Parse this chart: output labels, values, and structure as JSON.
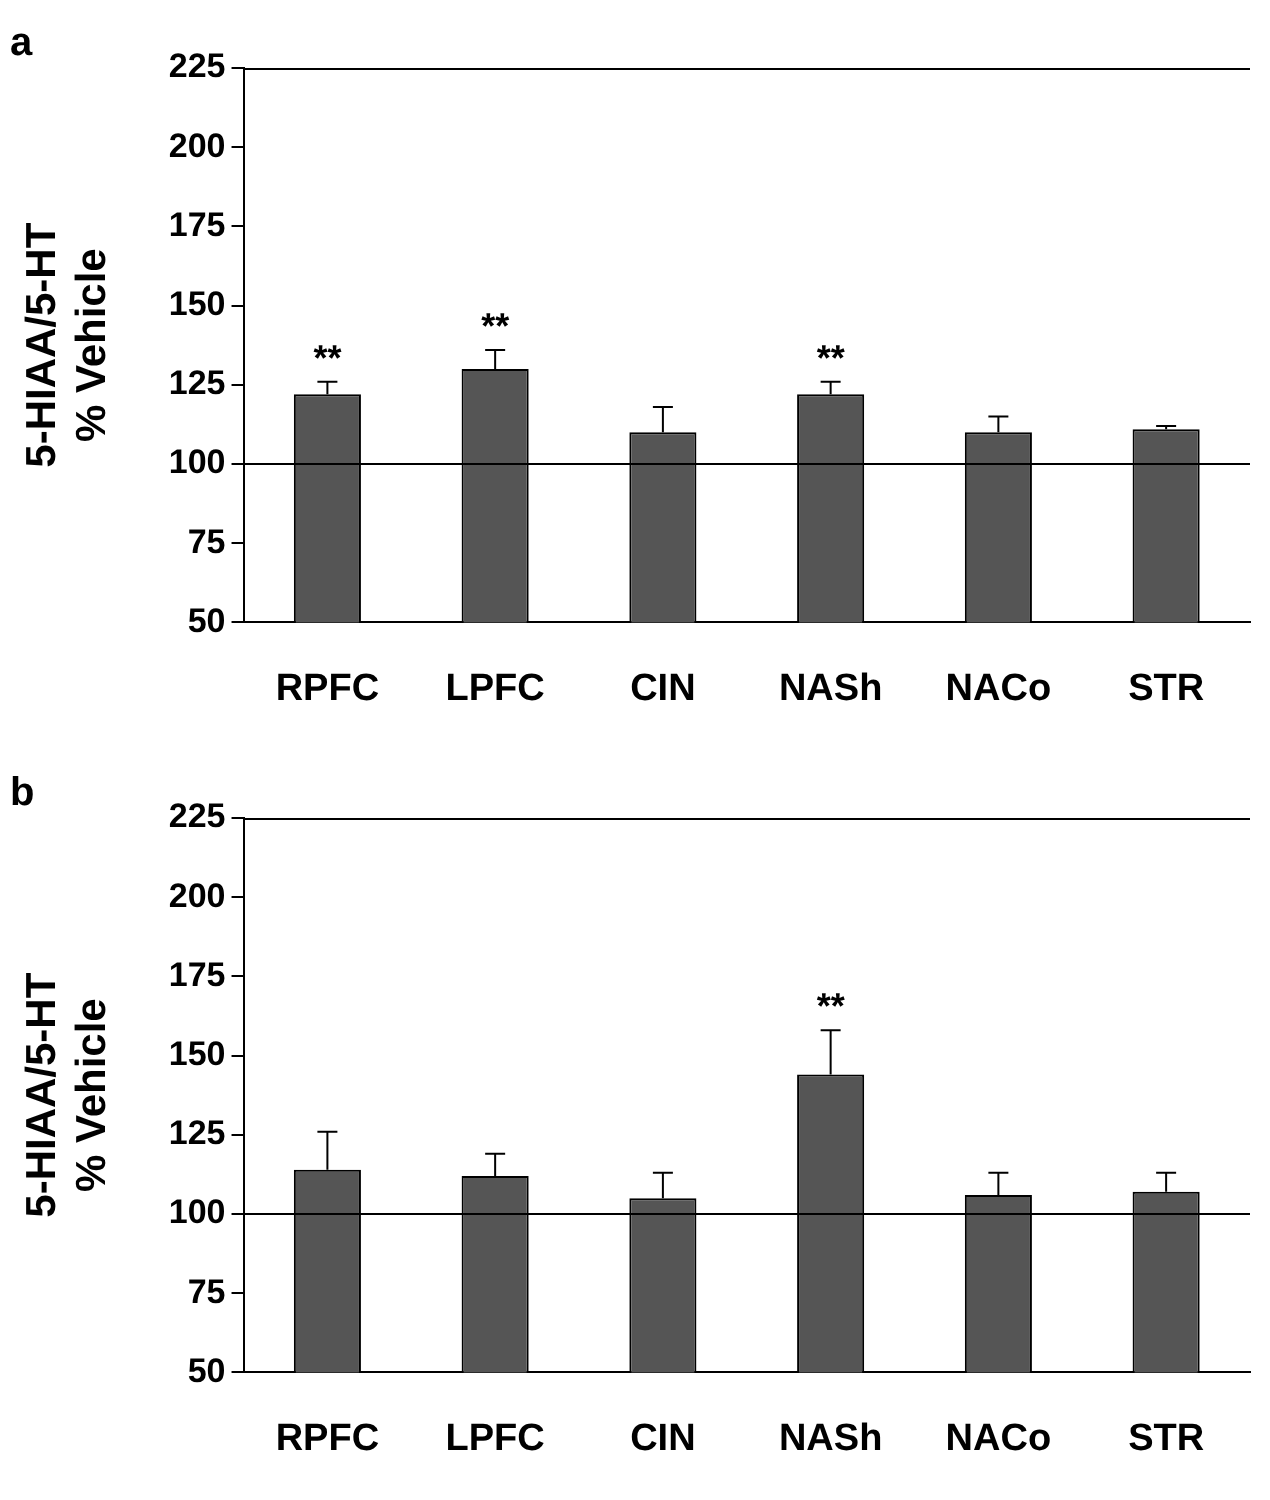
{
  "chart_data": [
    {
      "type": "bar",
      "title": "a",
      "ylabel": "5-HIAA/5-HT\n% Vehicle",
      "categories": [
        "RPFC",
        "LPFC",
        "CIN",
        "NASh",
        "NACo",
        "STR"
      ],
      "values": [
        122,
        130,
        110,
        122,
        110,
        111
      ],
      "errors": [
        [
          122,
          126
        ],
        [
          130,
          136
        ],
        [
          110,
          118
        ],
        [
          122,
          126
        ],
        [
          110,
          115
        ],
        [
          111,
          112
        ]
      ],
      "color": "#555555",
      "ylim": [
        50,
        225
      ],
      "yticks": [
        50,
        75,
        100,
        125,
        150,
        175,
        200,
        225
      ],
      "grid": false,
      "ref_lines": [
        {
          "axis": "y",
          "value": 100,
          "label": null
        }
      ],
      "annotations": [
        {
          "text": "**",
          "x": "RPFC",
          "y": 122
        },
        {
          "text": "**",
          "x": "LPFC",
          "y": 130
        },
        {
          "text": "**",
          "x": "NASh",
          "y": 122
        }
      ]
    },
    {
      "type": "bar",
      "title": "b",
      "ylabel": "5-HIAA/5-HT\n% Vehicle",
      "categories": [
        "RPFC",
        "LPFC",
        "CIN",
        "NASh",
        "NACo",
        "STR"
      ],
      "values": [
        114,
        112,
        105,
        144,
        106,
        107
      ],
      "errors": [
        [
          114,
          126
        ],
        [
          112,
          119
        ],
        [
          105,
          113
        ],
        [
          144,
          158
        ],
        [
          106,
          113
        ],
        [
          107,
          113
        ]
      ],
      "color": "#555555",
      "ylim": [
        50,
        225
      ],
      "yticks": [
        50,
        75,
        100,
        125,
        150,
        175,
        200,
        225
      ],
      "grid": false,
      "ref_lines": [
        {
          "axis": "y",
          "value": 100,
          "label": null
        }
      ],
      "annotations": [
        {
          "text": "**",
          "x": "NASh",
          "y": 144
        }
      ]
    }
  ]
}
